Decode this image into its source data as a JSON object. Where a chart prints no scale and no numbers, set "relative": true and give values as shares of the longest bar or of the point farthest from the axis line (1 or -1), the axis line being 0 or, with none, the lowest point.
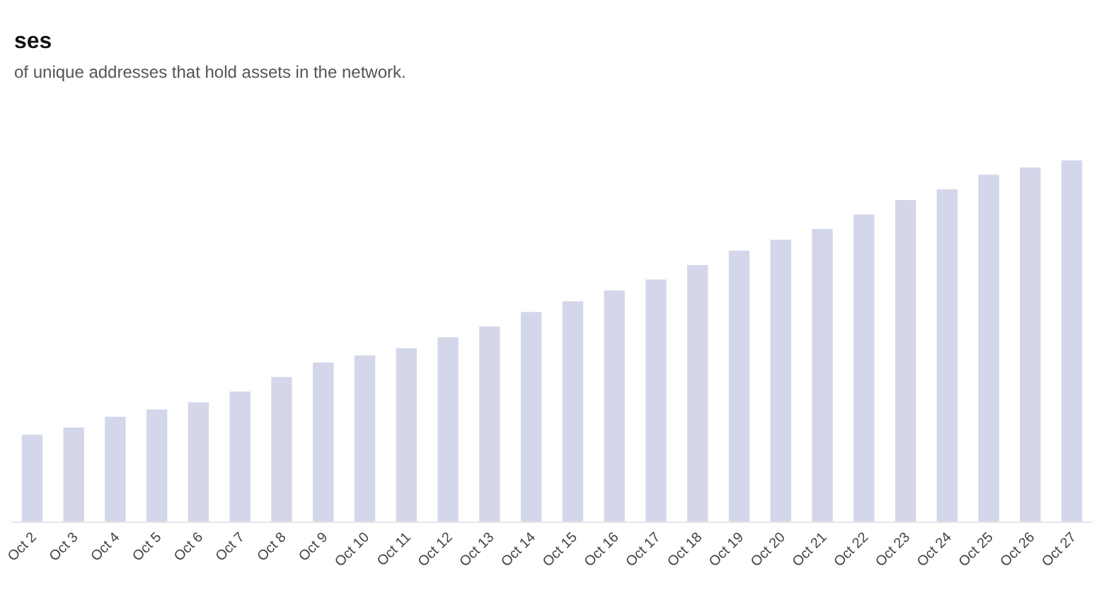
{
  "chart_data": {
    "type": "bar",
    "title": "ses",
    "subtitle": "of unique addresses that hold assets in the network.",
    "relative": true,
    "color": "#d4d7ea",
    "categories": [
      "Oct 2",
      "Oct 3",
      "Oct 4",
      "Oct 5",
      "Oct 6",
      "Oct 7",
      "Oct 8",
      "Oct 9",
      "Oct 10",
      "Oct 11",
      "Oct 12",
      "Oct 13",
      "Oct 14",
      "Oct 15",
      "Oct 16",
      "Oct 17",
      "Oct 18",
      "Oct 19",
      "Oct 20",
      "Oct 21",
      "Oct 22",
      "Oct 23",
      "Oct 24",
      "Oct 25",
      "Oct 26",
      "Oct 27"
    ],
    "values": [
      0.24,
      0.26,
      0.29,
      0.31,
      0.33,
      0.36,
      0.4,
      0.44,
      0.46,
      0.48,
      0.51,
      0.54,
      0.58,
      0.61,
      0.64,
      0.67,
      0.71,
      0.75,
      0.78,
      0.81,
      0.85,
      0.89,
      0.92,
      0.96,
      0.98,
      1
    ]
  }
}
